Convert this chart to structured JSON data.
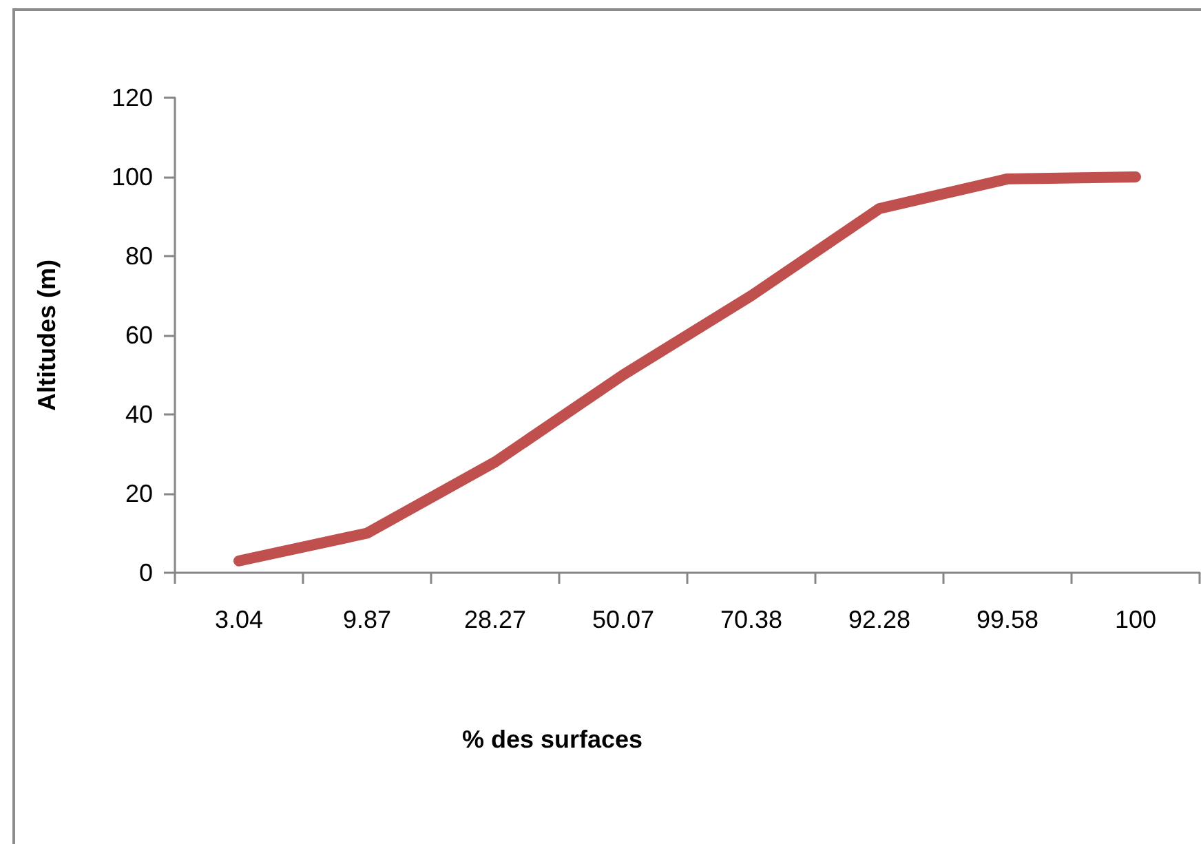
{
  "chart_data": {
    "type": "line",
    "xlabel": "% des surfaces",
    "ylabel": "Altitudes (m)",
    "categories": [
      "3.04",
      "9.87",
      "28.27",
      "50.07",
      "70.38",
      "92.28",
      "99.58",
      "100"
    ],
    "values": [
      3,
      10,
      28,
      50,
      70,
      92,
      99.5,
      100
    ],
    "color": "#c0504d",
    "ylim": [
      0,
      120
    ],
    "yticks": [
      0,
      20,
      40,
      60,
      80,
      100,
      120
    ]
  }
}
